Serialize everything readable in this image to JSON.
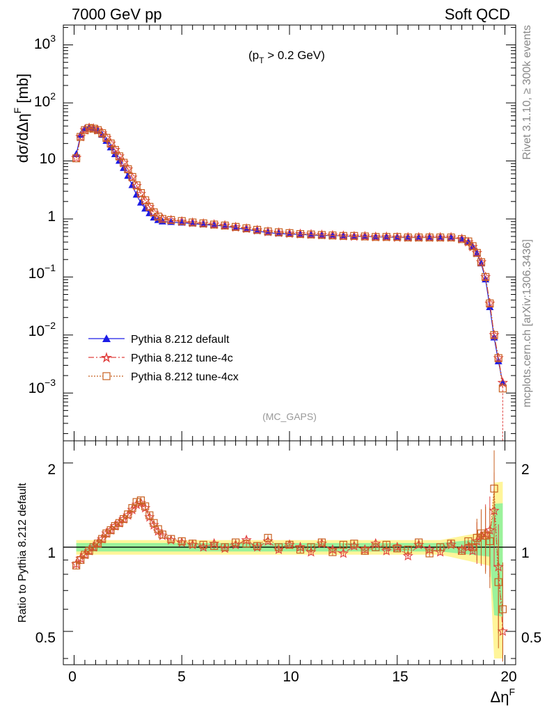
{
  "header": {
    "left": "7000 GeV pp",
    "right": "Soft QCD"
  },
  "annotation": {
    "cut_prefix": "(p",
    "cut_sub": "T",
    "cut_suffix": " > 0.2 GeV)",
    "analysis": "(MC_GAPS)"
  },
  "side_labels": {
    "rivet": "Rivet 3.1.10, ≥ 300k events",
    "source": "mcplots.cern.ch [arXiv:1306.3436]"
  },
  "legend": [
    {
      "label": "Pythia 8.212 default",
      "color": "#1c1ce6",
      "marker": "triangle",
      "line": "solid"
    },
    {
      "label": "Pythia 8.212 tune-4c",
      "color": "#e0403f",
      "marker": "star",
      "line": "dashdot"
    },
    {
      "label": "Pythia 8.212 tune-4cx",
      "color": "#c86020",
      "marker": "open-square",
      "line": "dotted"
    }
  ],
  "top_axis": {
    "ylabel": "dσ/dΔη",
    "ylabel_sup": "F",
    "ylabel_unit": " [mb]",
    "yticks": [
      {
        "base": "10",
        "exp": "3"
      },
      {
        "base": "10",
        "exp": "2"
      },
      {
        "base": "10",
        "exp": ""
      },
      {
        "base": "1",
        "exp": ""
      },
      {
        "base": "10",
        "exp": "−1"
      },
      {
        "base": "10",
        "exp": "−2"
      },
      {
        "base": "10",
        "exp": "−3"
      }
    ]
  },
  "bottom_axis": {
    "ylabel": "Ratio to Pythia 8.212 default",
    "yticks": [
      "0.5",
      "1",
      "2"
    ],
    "xlabel": "Δη",
    "xlabel_sup": "F",
    "xticks": [
      "0",
      "5",
      "10",
      "15",
      "20"
    ]
  },
  "chart_data": {
    "type": "line",
    "x_range": [
      -0.5,
      20.5
    ],
    "main": {
      "yscale": "log",
      "ylim": [
        0.00015,
        2200
      ],
      "x": [
        0.1,
        0.3,
        0.5,
        0.7,
        0.9,
        1.1,
        1.3,
        1.5,
        1.7,
        1.9,
        2.1,
        2.3,
        2.5,
        2.7,
        2.9,
        3.1,
        3.3,
        3.5,
        3.7,
        3.9,
        4.1,
        4.5,
        5,
        5.5,
        6,
        6.5,
        7,
        7.5,
        8,
        8.5,
        9,
        9.5,
        10,
        10.5,
        11,
        11.5,
        12,
        12.5,
        13,
        13.5,
        14,
        14.5,
        15,
        15.5,
        16,
        16.5,
        17,
        17.5,
        18,
        18.3,
        18.5,
        18.7,
        18.9,
        19.1,
        19.3,
        19.5,
        19.7,
        19.9
      ],
      "series": [
        {
          "name": "Pythia 8.212 default",
          "values": [
            13,
            28,
            36,
            38,
            36,
            33,
            28,
            22,
            17,
            13,
            10,
            7.5,
            5.5,
            3.8,
            2.6,
            1.9,
            1.5,
            1.25,
            1.05,
            0.95,
            0.9,
            0.88,
            0.86,
            0.83,
            0.8,
            0.78,
            0.75,
            0.7,
            0.66,
            0.62,
            0.58,
            0.56,
            0.55,
            0.54,
            0.53,
            0.52,
            0.52,
            0.51,
            0.5,
            0.5,
            0.49,
            0.49,
            0.48,
            0.48,
            0.48,
            0.48,
            0.48,
            0.48,
            0.45,
            0.4,
            0.33,
            0.25,
            0.17,
            0.09,
            0.03,
            0.009,
            0.0035,
            0.0015
          ]
        },
        {
          "name": "Pythia 8.212 tune-4c",
          "values": [
            11.3,
            26,
            34,
            37,
            36,
            34,
            30,
            25,
            20,
            15.5,
            12,
            9.3,
            7.2,
            5.2,
            3.7,
            2.7,
            2.05,
            1.6,
            1.28,
            1.08,
            1.0,
            0.95,
            0.9,
            0.86,
            0.83,
            0.8,
            0.77,
            0.72,
            0.68,
            0.64,
            0.6,
            0.58,
            0.56,
            0.55,
            0.54,
            0.53,
            0.52,
            0.51,
            0.5,
            0.5,
            0.49,
            0.49,
            0.48,
            0.48,
            0.48,
            0.48,
            0.48,
            0.48,
            0.45,
            0.4,
            0.33,
            0.26,
            0.18,
            0.1,
            0.035,
            0.01,
            0.004,
            0.0015
          ]
        },
        {
          "name": "Pythia 8.212 tune-4cx",
          "values": [
            11.1,
            26,
            34,
            37,
            36,
            34,
            30,
            25,
            20,
            15.5,
            12,
            9.3,
            7.2,
            5.3,
            3.8,
            2.8,
            2.1,
            1.62,
            1.3,
            1.1,
            1.0,
            0.96,
            0.92,
            0.87,
            0.84,
            0.8,
            0.77,
            0.73,
            0.69,
            0.65,
            0.61,
            0.59,
            0.57,
            0.55,
            0.54,
            0.53,
            0.52,
            0.51,
            0.51,
            0.5,
            0.49,
            0.49,
            0.49,
            0.48,
            0.48,
            0.48,
            0.48,
            0.48,
            0.45,
            0.41,
            0.34,
            0.26,
            0.18,
            0.1,
            0.035,
            0.01,
            0.004,
            0.0012
          ]
        }
      ]
    },
    "ratio": {
      "ylabel": "Ratio to Pythia 8.212 default",
      "yscale": "log",
      "ylim": [
        0.38,
        2.4
      ],
      "x": [
        0.1,
        0.3,
        0.5,
        0.7,
        0.9,
        1.1,
        1.3,
        1.5,
        1.7,
        1.9,
        2.1,
        2.3,
        2.5,
        2.7,
        2.9,
        3.1,
        3.3,
        3.5,
        3.7,
        3.9,
        4.1,
        4.5,
        5,
        5.5,
        6,
        6.5,
        7,
        7.5,
        8,
        8.5,
        9,
        9.5,
        10,
        10.5,
        11,
        11.5,
        12,
        12.5,
        13,
        13.5,
        14,
        14.5,
        15,
        15.5,
        16,
        16.5,
        17,
        17.5,
        18,
        18.3,
        18.5,
        18.7,
        18.9,
        19.1,
        19.3,
        19.5,
        19.7,
        19.9
      ],
      "series": [
        {
          "name": "Pythia 8.212 tune-4c",
          "values": [
            0.87,
            0.91,
            0.94,
            0.97,
            1.0,
            1.03,
            1.07,
            1.12,
            1.15,
            1.19,
            1.22,
            1.26,
            1.3,
            1.36,
            1.42,
            1.44,
            1.38,
            1.28,
            1.2,
            1.14,
            1.1,
            1.06,
            1.04,
            1.02,
            1.0,
            1.03,
            0.99,
            1.02,
            1.06,
            1.0,
            1.05,
            0.98,
            1.02,
            1.0,
            0.96,
            1.03,
            0.98,
            0.95,
            1.01,
            0.98,
            1.03,
            0.97,
            1.0,
            0.93,
            1.02,
            0.98,
            0.96,
            1.02,
            0.98,
            1.0,
            0.97,
            1.05,
            1.1,
            1.12,
            1.15,
            1.35,
            0.85,
            0.5
          ]
        },
        {
          "name": "Pythia 8.212 tune-4cx",
          "values": [
            0.86,
            0.9,
            0.94,
            0.97,
            1.0,
            1.03,
            1.07,
            1.12,
            1.15,
            1.19,
            1.22,
            1.26,
            1.31,
            1.38,
            1.45,
            1.47,
            1.4,
            1.3,
            1.22,
            1.16,
            1.11,
            1.07,
            1.05,
            1.03,
            1.02,
            1.01,
            1.0,
            1.04,
            1.03,
            1.01,
            1.08,
            1.0,
            1.02,
            0.98,
            1.0,
            1.04,
            0.96,
            1.02,
            1.03,
            0.97,
            1.0,
            1.02,
            0.99,
            0.98,
            1.04,
            0.95,
            1.0,
            1.03,
            0.97,
            1.05,
            1.0,
            1.08,
            1.12,
            1.1,
            1.05,
            1.62,
            0.75,
            0.6
          ]
        }
      ],
      "bands": {
        "yellow_halfwidth_near": 0.06,
        "green_halfwidth_near": 0.035
      }
    }
  }
}
